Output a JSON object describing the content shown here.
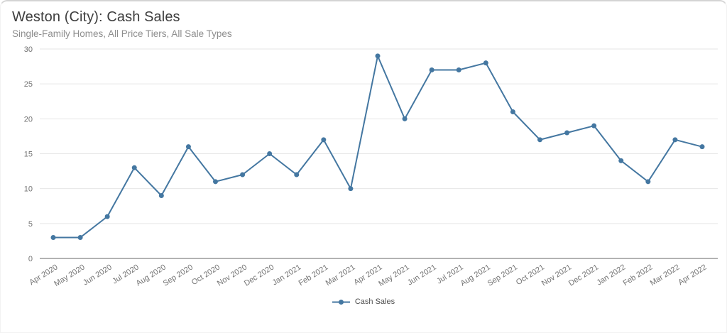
{
  "chart_data": {
    "type": "line",
    "title": "Weston (City): Cash Sales",
    "subtitle": "Single-Family Homes, All Price Tiers, All Sale Types",
    "categories": [
      "Apr 2020",
      "May 2020",
      "Jun 2020",
      "Jul 2020",
      "Aug 2020",
      "Sep 2020",
      "Oct 2020",
      "Nov 2020",
      "Dec 2020",
      "Jan 2021",
      "Feb 2021",
      "Mar 2021",
      "Apr 2021",
      "May 2021",
      "Jun 2021",
      "Jul 2021",
      "Aug 2021",
      "Sep 2021",
      "Oct 2021",
      "Nov 2021",
      "Dec 2021",
      "Jan 2022",
      "Feb 2022",
      "Mar 2022",
      "Apr 2022"
    ],
    "series": [
      {
        "name": "Cash Sales",
        "color": "#4477a1",
        "values": [
          3,
          3,
          6,
          13,
          9,
          16,
          11,
          12,
          15,
          12,
          17,
          10,
          29,
          20,
          27,
          27,
          28,
          21,
          17,
          18,
          19,
          14,
          11,
          17,
          16
        ]
      }
    ],
    "xlabel": "",
    "ylabel": "",
    "ylim": [
      0,
      30
    ],
    "yticks": [
      0,
      5,
      10,
      15,
      20,
      25,
      30
    ],
    "grid": "horizontal",
    "legend_position": "bottom",
    "x_label_rotation_deg": -32
  },
  "colors": {
    "accent": "#4477a1",
    "gridline": "#e6e6e6",
    "axis_line": "#666666",
    "title_text": "#3d3d3d",
    "subtitle_text": "#8d8d8d",
    "tick_text": "#737373"
  }
}
